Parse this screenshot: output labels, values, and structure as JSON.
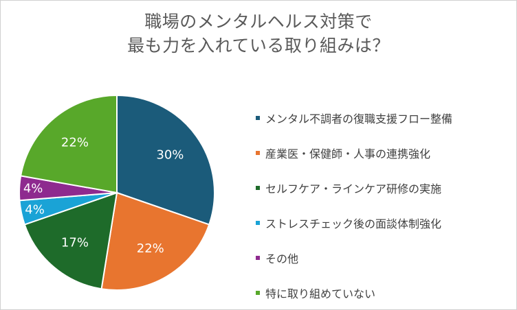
{
  "chart_data": {
    "type": "pie",
    "title": [
      "職場のメンタルヘルス対策で",
      "最も力を入れている取り組みは？"
    ],
    "categories": [
      "メンタル不調者の復職支援フロー整備",
      "産業医・保健師・人事の連携強化",
      "セルフケア・ラインケア研修の実施",
      "ストレスチェック後の面談体制強化",
      "その他",
      "特に取り組めていない"
    ],
    "values": [
      30,
      22,
      17,
      4,
      4,
      22
    ],
    "labels": [
      "30%",
      "22%",
      "17%",
      "4%",
      "4%",
      "22%"
    ],
    "colors": [
      "#1b5b7a",
      "#e8752f",
      "#1e6b2a",
      "#1aa3d6",
      "#8e2a8f",
      "#58a82a"
    ],
    "legend_position": "right"
  }
}
